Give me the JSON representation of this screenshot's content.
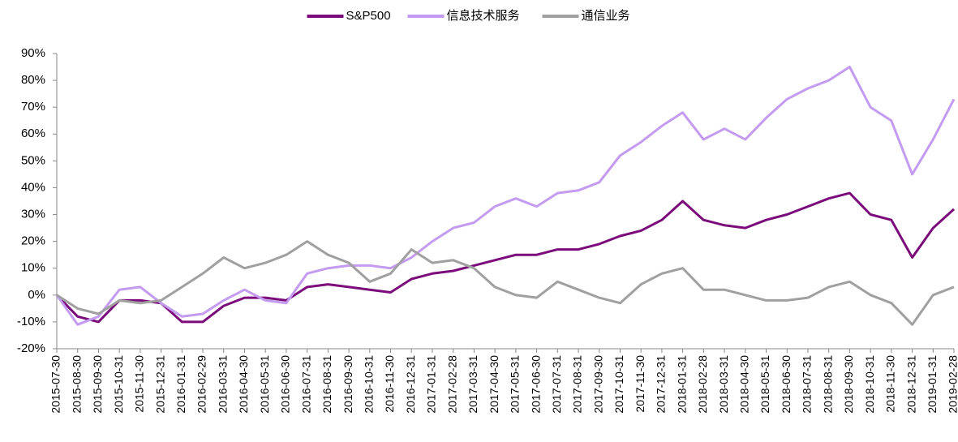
{
  "chart_data": {
    "type": "line",
    "categories": [
      "2015-07-30",
      "2015-08-30",
      "2015-09-30",
      "2015-10-31",
      "2015-11-30",
      "2015-12-31",
      "2016-01-31",
      "2016-02-29",
      "2016-03-31",
      "2016-04-30",
      "2016-05-31",
      "2016-06-30",
      "2016-07-31",
      "2016-08-31",
      "2016-09-30",
      "2016-10-31",
      "2016-11-30",
      "2016-12-31",
      "2017-01-31",
      "2017-02-28",
      "2017-03-31",
      "2017-04-30",
      "2017-05-31",
      "2017-06-30",
      "2017-07-31",
      "2017-08-31",
      "2017-09-30",
      "2017-10-31",
      "2017-11-30",
      "2017-12-31",
      "2018-01-31",
      "2018-02-28",
      "2018-03-31",
      "2018-04-30",
      "2018-05-31",
      "2018-06-30",
      "2018-07-31",
      "2018-08-31",
      "2018-09-30",
      "2018-10-31",
      "2018-11-30",
      "2018-12-31",
      "2019-01-31",
      "2019-02-28"
    ],
    "series": [
      {
        "name": "S&P500",
        "color": "#7b0a7b",
        "values": [
          0,
          -8,
          -10,
          -2,
          -2,
          -3,
          -10,
          -10,
          -4,
          -1,
          -1,
          -2,
          3,
          4,
          3,
          2,
          1,
          6,
          8,
          9,
          11,
          13,
          15,
          15,
          17,
          17,
          19,
          22,
          24,
          28,
          35,
          28,
          26,
          25,
          28,
          30,
          33,
          36,
          38,
          30,
          28,
          14,
          25,
          32
        ]
      },
      {
        "name": "信息技术服务",
        "color": "#c39bf0",
        "values": [
          0,
          -11,
          -8,
          2,
          3,
          -3,
          -8,
          -7,
          -2,
          2,
          -2,
          -3,
          8,
          10,
          11,
          11,
          10,
          14,
          20,
          25,
          27,
          33,
          36,
          33,
          38,
          39,
          42,
          52,
          57,
          63,
          68,
          58,
          62,
          58,
          66,
          73,
          77,
          80,
          85,
          70,
          65,
          45,
          58,
          73
        ]
      },
      {
        "name": "通信业务",
        "color": "#a0a0a0",
        "values": [
          0,
          -5,
          -7,
          -2,
          -3,
          -2,
          3,
          8,
          14,
          10,
          12,
          15,
          20,
          15,
          12,
          5,
          8,
          17,
          12,
          13,
          10,
          3,
          0,
          -1,
          5,
          2,
          -1,
          -3,
          4,
          8,
          10,
          2,
          2,
          0,
          -2,
          -2,
          -1,
          3,
          5,
          0,
          -3,
          -11,
          0,
          3
        ]
      }
    ],
    "ylim": [
      -20,
      90
    ],
    "yticks": [
      {
        "value": -20,
        "label": "-20%"
      },
      {
        "value": -10,
        "label": "-10%"
      },
      {
        "value": 0,
        "label": "0%"
      },
      {
        "value": 10,
        "label": "10%"
      },
      {
        "value": 20,
        "label": "20%"
      },
      {
        "value": 30,
        "label": "30%"
      },
      {
        "value": 40,
        "label": "40%"
      },
      {
        "value": 50,
        "label": "50%"
      },
      {
        "value": 60,
        "label": "60%"
      },
      {
        "value": 70,
        "label": "70%"
      },
      {
        "value": 80,
        "label": "80%"
      },
      {
        "value": 90,
        "label": "90%"
      }
    ],
    "legend": "top"
  }
}
